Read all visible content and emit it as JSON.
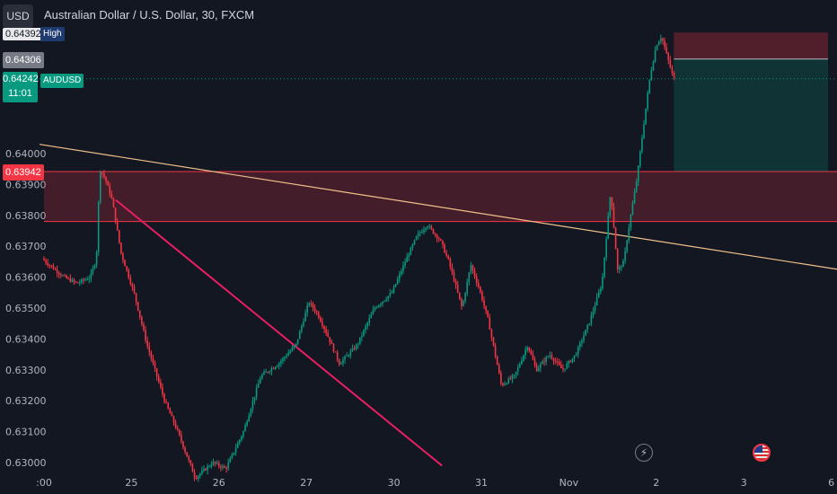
{
  "header": {
    "currency": "USD",
    "title": "Australian Dollar / U.S. Dollar, 30, FXCM"
  },
  "axis_tags": {
    "high_value": "0.64392",
    "high_label": "High",
    "level1": "0.64306",
    "last_price": "0.64242",
    "symbol_label": "AUDUSD",
    "countdown": "11:01",
    "level2": "0.63942"
  },
  "colors": {
    "background": "#131722",
    "up": "#089981",
    "down": "#f23645",
    "trendline": "#f0c08a",
    "downtrend": "#e91e63",
    "zone": "#f23645",
    "target": "#089981"
  },
  "icons": [
    "lightning-icon",
    "us-flag-icon"
  ],
  "chart_data": {
    "type": "candlestick",
    "title": "Australian Dollar / U.S. Dollar, 30, FXCM",
    "ylim": [
      0.63,
      0.644
    ],
    "y_ticks": [
      "0.64000",
      "0.63900",
      "0.63800",
      "0.63700",
      "0.63600",
      "0.63500",
      "0.63400",
      "0.63300",
      "0.63200",
      "0.63100",
      "0.63000"
    ],
    "x_ticks": [
      ":00",
      "25",
      "26",
      "27",
      "30",
      "31",
      "Nov",
      "2",
      "3",
      "6"
    ],
    "x_tick_days": [
      0,
      1,
      2,
      3,
      4,
      5,
      6,
      7,
      8,
      9
    ],
    "grid": false,
    "price_path": [
      [
        0.0,
        0.6366
      ],
      [
        0.25,
        0.636
      ],
      [
        0.4,
        0.6358
      ],
      [
        0.55,
        0.636
      ],
      [
        0.62,
        0.6366
      ],
      [
        0.66,
        0.6395
      ],
      [
        0.72,
        0.6392
      ],
      [
        0.8,
        0.6385
      ],
      [
        0.9,
        0.6368
      ],
      [
        1.05,
        0.6355
      ],
      [
        1.2,
        0.6338
      ],
      [
        1.4,
        0.632
      ],
      [
        1.55,
        0.631
      ],
      [
        1.75,
        0.6295
      ],
      [
        1.95,
        0.63
      ],
      [
        2.1,
        0.6298
      ],
      [
        2.3,
        0.631
      ],
      [
        2.5,
        0.6328
      ],
      [
        2.7,
        0.6332
      ],
      [
        2.9,
        0.6338
      ],
      [
        3.05,
        0.6352
      ],
      [
        3.15,
        0.6348
      ],
      [
        3.25,
        0.6342
      ],
      [
        3.4,
        0.6332
      ],
      [
        3.6,
        0.6338
      ],
      [
        3.8,
        0.635
      ],
      [
        4.0,
        0.6355
      ],
      [
        4.15,
        0.6365
      ],
      [
        4.28,
        0.6373
      ],
      [
        4.4,
        0.6377
      ],
      [
        4.55,
        0.6372
      ],
      [
        4.65,
        0.6365
      ],
      [
        4.8,
        0.635
      ],
      [
        4.9,
        0.6364
      ],
      [
        5.0,
        0.6356
      ],
      [
        5.1,
        0.6346
      ],
      [
        5.25,
        0.6325
      ],
      [
        5.4,
        0.6328
      ],
      [
        5.55,
        0.6338
      ],
      [
        5.65,
        0.633
      ],
      [
        5.8,
        0.6335
      ],
      [
        5.95,
        0.633
      ],
      [
        6.1,
        0.6335
      ],
      [
        6.25,
        0.6345
      ],
      [
        6.4,
        0.6358
      ],
      [
        6.5,
        0.6388
      ],
      [
        6.58,
        0.6362
      ],
      [
        6.65,
        0.6365
      ],
      [
        6.7,
        0.6375
      ],
      [
        6.8,
        0.6392
      ],
      [
        6.88,
        0.641
      ],
      [
        6.95,
        0.6425
      ],
      [
        7.02,
        0.6435
      ],
      [
        7.08,
        0.6438
      ],
      [
        7.14,
        0.6432
      ],
      [
        7.22,
        0.64242
      ]
    ],
    "zone": {
      "top": 0.63942,
      "bottom": 0.6378,
      "x_start": 0.0,
      "x_end": 9.42
    },
    "target_box": {
      "top": 0.64392,
      "mid": 0.64306,
      "bottom": 0.63942,
      "x_start": 7.2,
      "x_end": 9.42
    },
    "trendline": {
      "x0": 0.0,
      "y0": 0.6403,
      "x1": 9.42,
      "y1": 0.6361
    },
    "downtrend": {
      "x0": 0.82,
      "y0": 0.6385,
      "x1": 4.55,
      "y1": 0.6299
    },
    "last_price": 0.64242
  }
}
